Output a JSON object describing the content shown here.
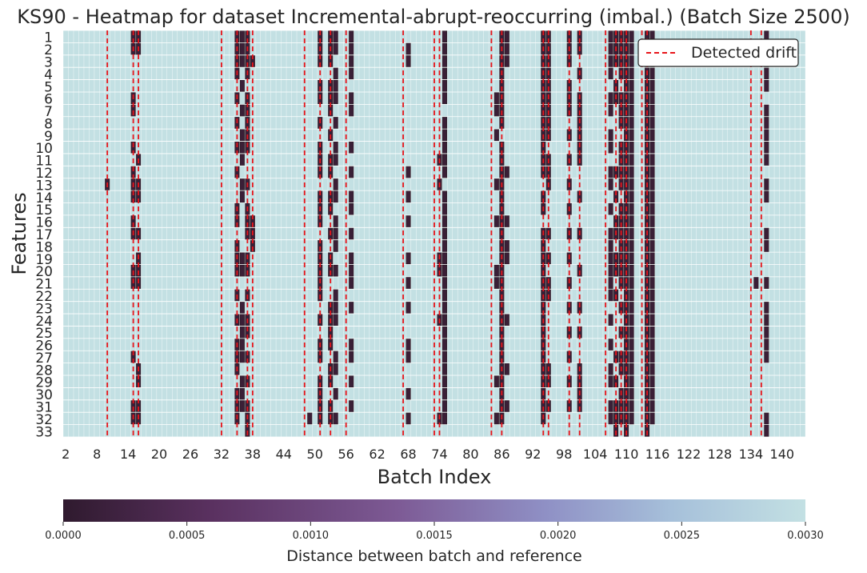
{
  "chart_data": {
    "type": "heatmap",
    "title": "KS90 - Heatmap for dataset Incremental-abrupt-reoccurring (imbal.) (Batch Size 2500)",
    "xlabel": "Batch Index",
    "ylabel": "Features",
    "x_first_batch": 2,
    "x_last_batch": 144,
    "x_tick_labels": [
      "2",
      "8",
      "14",
      "20",
      "26",
      "32",
      "38",
      "44",
      "50",
      "56",
      "62",
      "68",
      "74",
      "80",
      "86",
      "92",
      "98",
      "104",
      "110",
      "116",
      "122",
      "128",
      "134",
      "140"
    ],
    "y_tick_labels": [
      "1",
      "2",
      "3",
      "4",
      "5",
      "6",
      "7",
      "8",
      "9",
      "10",
      "11",
      "12",
      "13",
      "14",
      "15",
      "16",
      "17",
      "18",
      "19",
      "20",
      "21",
      "22",
      "23",
      "24",
      "25",
      "26",
      "27",
      "28",
      "29",
      "30",
      "31",
      "32",
      "33"
    ],
    "background_value": 0.003,
    "legend": {
      "label": "Detected drift",
      "placement": "upper-right",
      "color": "#e8151b"
    },
    "detected_drift_batches": [
      10,
      15,
      16,
      32,
      35,
      37,
      38,
      48,
      51,
      53,
      56,
      67,
      73,
      74,
      84,
      86,
      94,
      95,
      99,
      101,
      106,
      108,
      109,
      110,
      113,
      114,
      134,
      136
    ],
    "drift_column_features": {
      "10": [
        13
      ],
      "15": [
        1,
        2,
        6,
        7,
        10,
        12,
        13,
        14,
        16,
        17,
        20,
        21,
        27,
        31,
        32
      ],
      "16": [
        1,
        2,
        11,
        13,
        14,
        17,
        19,
        20,
        21,
        28,
        29,
        31,
        32
      ],
      "35": [
        1,
        2,
        3,
        4,
        6,
        8,
        10,
        12,
        15,
        16,
        18,
        19,
        20,
        22,
        24,
        26,
        27,
        28,
        30,
        31,
        32
      ],
      "36": [
        1,
        2,
        3,
        5,
        7,
        9,
        10,
        11,
        13,
        14,
        19,
        20,
        23,
        24,
        25,
        26,
        27,
        29,
        30,
        31
      ],
      "37": [
        1,
        2,
        3,
        4,
        6,
        7,
        8,
        9,
        10,
        13,
        15,
        16,
        17,
        19,
        20,
        22,
        24,
        25,
        27,
        29,
        31,
        32,
        33
      ],
      "38": [
        3,
        16,
        17,
        18
      ],
      "49": [
        32
      ],
      "51": [
        1,
        2,
        3,
        5,
        6,
        8,
        10,
        11,
        12,
        14,
        15,
        16,
        18,
        19,
        20,
        21,
        22,
        24,
        26,
        27,
        29,
        30,
        31,
        32
      ],
      "53": [
        1,
        2,
        3,
        5,
        6,
        7,
        9,
        11,
        12,
        14,
        15,
        17,
        19,
        20,
        23,
        24,
        25,
        26,
        28,
        29,
        31,
        32
      ],
      "54": [
        1,
        2,
        4,
        5,
        6,
        8,
        10,
        11,
        13,
        14,
        16,
        17,
        18,
        20,
        22,
        23,
        24,
        27,
        28,
        30,
        32
      ],
      "57": [
        1,
        2,
        3,
        4,
        6,
        7,
        10,
        12,
        14,
        15,
        17,
        19,
        20,
        21,
        23,
        26,
        27,
        29,
        31
      ],
      "68": [
        2,
        3,
        12,
        14,
        16,
        19,
        21,
        23,
        26,
        27,
        30,
        32
      ],
      "74": [
        11,
        13,
        19,
        20,
        24,
        32
      ],
      "75": [
        1,
        2,
        3,
        4,
        5,
        6,
        8,
        9,
        10,
        11,
        12,
        14,
        15,
        16,
        17,
        18,
        19,
        20,
        21,
        22,
        23,
        24,
        25,
        26,
        27,
        28,
        29,
        30,
        31,
        32
      ],
      "85": [
        6,
        7,
        9,
        13,
        16,
        20,
        21,
        29,
        32
      ],
      "86": [
        1,
        2,
        3,
        4,
        5,
        6,
        7,
        8,
        10,
        11,
        12,
        13,
        14,
        15,
        16,
        17,
        18,
        19,
        20,
        21,
        22,
        23,
        24,
        25,
        26,
        27,
        28,
        29,
        30,
        31,
        32
      ],
      "87": [
        1,
        2,
        3,
        12,
        16,
        18,
        19,
        24,
        28,
        31
      ],
      "94": [
        1,
        2,
        3,
        4,
        5,
        6,
        7,
        8,
        9,
        10,
        11,
        12,
        14,
        15,
        17,
        18,
        19,
        20,
        21,
        22,
        23,
        24,
        25,
        26,
        27,
        28,
        29,
        30,
        31,
        32
      ],
      "95": [
        1,
        2,
        3,
        4,
        5,
        6,
        7,
        8,
        9,
        11,
        12,
        13,
        17,
        19,
        21,
        22,
        28,
        29,
        31
      ],
      "99": [
        1,
        2,
        3,
        5,
        6,
        7,
        9,
        11,
        13,
        15,
        17,
        19,
        21,
        23,
        25,
        27,
        29,
        31
      ],
      "101": [
        1,
        2,
        4,
        6,
        7,
        8,
        9,
        10,
        11,
        14,
        17,
        20,
        23,
        25,
        28,
        29,
        30,
        31
      ],
      "107": [
        1,
        2,
        3,
        4,
        6,
        7,
        9,
        10,
        12,
        13,
        15,
        17,
        18,
        19,
        20,
        21,
        22,
        24,
        26,
        28,
        29,
        31,
        32
      ],
      "108": [
        1,
        2,
        3,
        5,
        6,
        12,
        14,
        16,
        17,
        19,
        20,
        22,
        27,
        29,
        31,
        32,
        33
      ],
      "109": [
        1,
        2,
        3,
        4,
        6,
        7,
        8,
        10,
        11,
        12,
        13,
        15,
        16,
        17,
        18,
        19,
        20,
        21,
        23,
        25,
        27,
        28,
        30,
        31,
        32
      ],
      "110": [
        1,
        2,
        3,
        4,
        5,
        6,
        7,
        8,
        9,
        10,
        11,
        12,
        13,
        14,
        15,
        16,
        17,
        18,
        19,
        20,
        21,
        22,
        23,
        24,
        25,
        26,
        27,
        28,
        29,
        30,
        31,
        32,
        33
      ],
      "111": [
        1,
        2,
        3,
        4,
        5,
        6,
        7,
        8,
        9,
        10,
        11,
        12,
        13,
        14,
        15,
        16,
        17,
        18,
        19,
        20,
        21,
        22,
        23,
        24,
        25,
        26,
        27,
        28,
        29,
        30,
        31,
        32
      ],
      "114": [
        1,
        2,
        3,
        4,
        5,
        6,
        7,
        8,
        9,
        10,
        11,
        12,
        13,
        14,
        15,
        16,
        17,
        18,
        19,
        20,
        21,
        22,
        23,
        24,
        25,
        26,
        27,
        28,
        29,
        30,
        31,
        32,
        33
      ],
      "115": [
        1,
        2,
        3,
        4,
        5,
        6,
        7,
        8,
        9,
        10,
        11,
        12,
        13,
        14,
        15,
        16,
        17,
        18,
        19,
        20,
        21,
        22,
        23,
        24,
        25,
        26,
        27,
        28,
        29,
        30,
        31,
        32
      ],
      "135": [
        21
      ],
      "137": [
        1,
        2,
        3,
        4,
        5,
        7,
        8,
        9,
        10,
        11,
        13,
        14,
        17,
        18,
        21,
        23,
        24,
        25,
        26,
        27,
        32,
        33
      ]
    },
    "colorbar": {
      "label": "Distance between batch and reference",
      "vmin": 0.0,
      "vmax": 0.003,
      "tick_labels": [
        "0.0000",
        "0.0005",
        "0.0010",
        "0.0015",
        "0.0020",
        "0.0025",
        "0.0030"
      ],
      "colors": [
        "#2f1a2e",
        "#5a3160",
        "#7d5a95",
        "#8f90c5",
        "#a6c0da",
        "#c3e0e3"
      ]
    }
  }
}
